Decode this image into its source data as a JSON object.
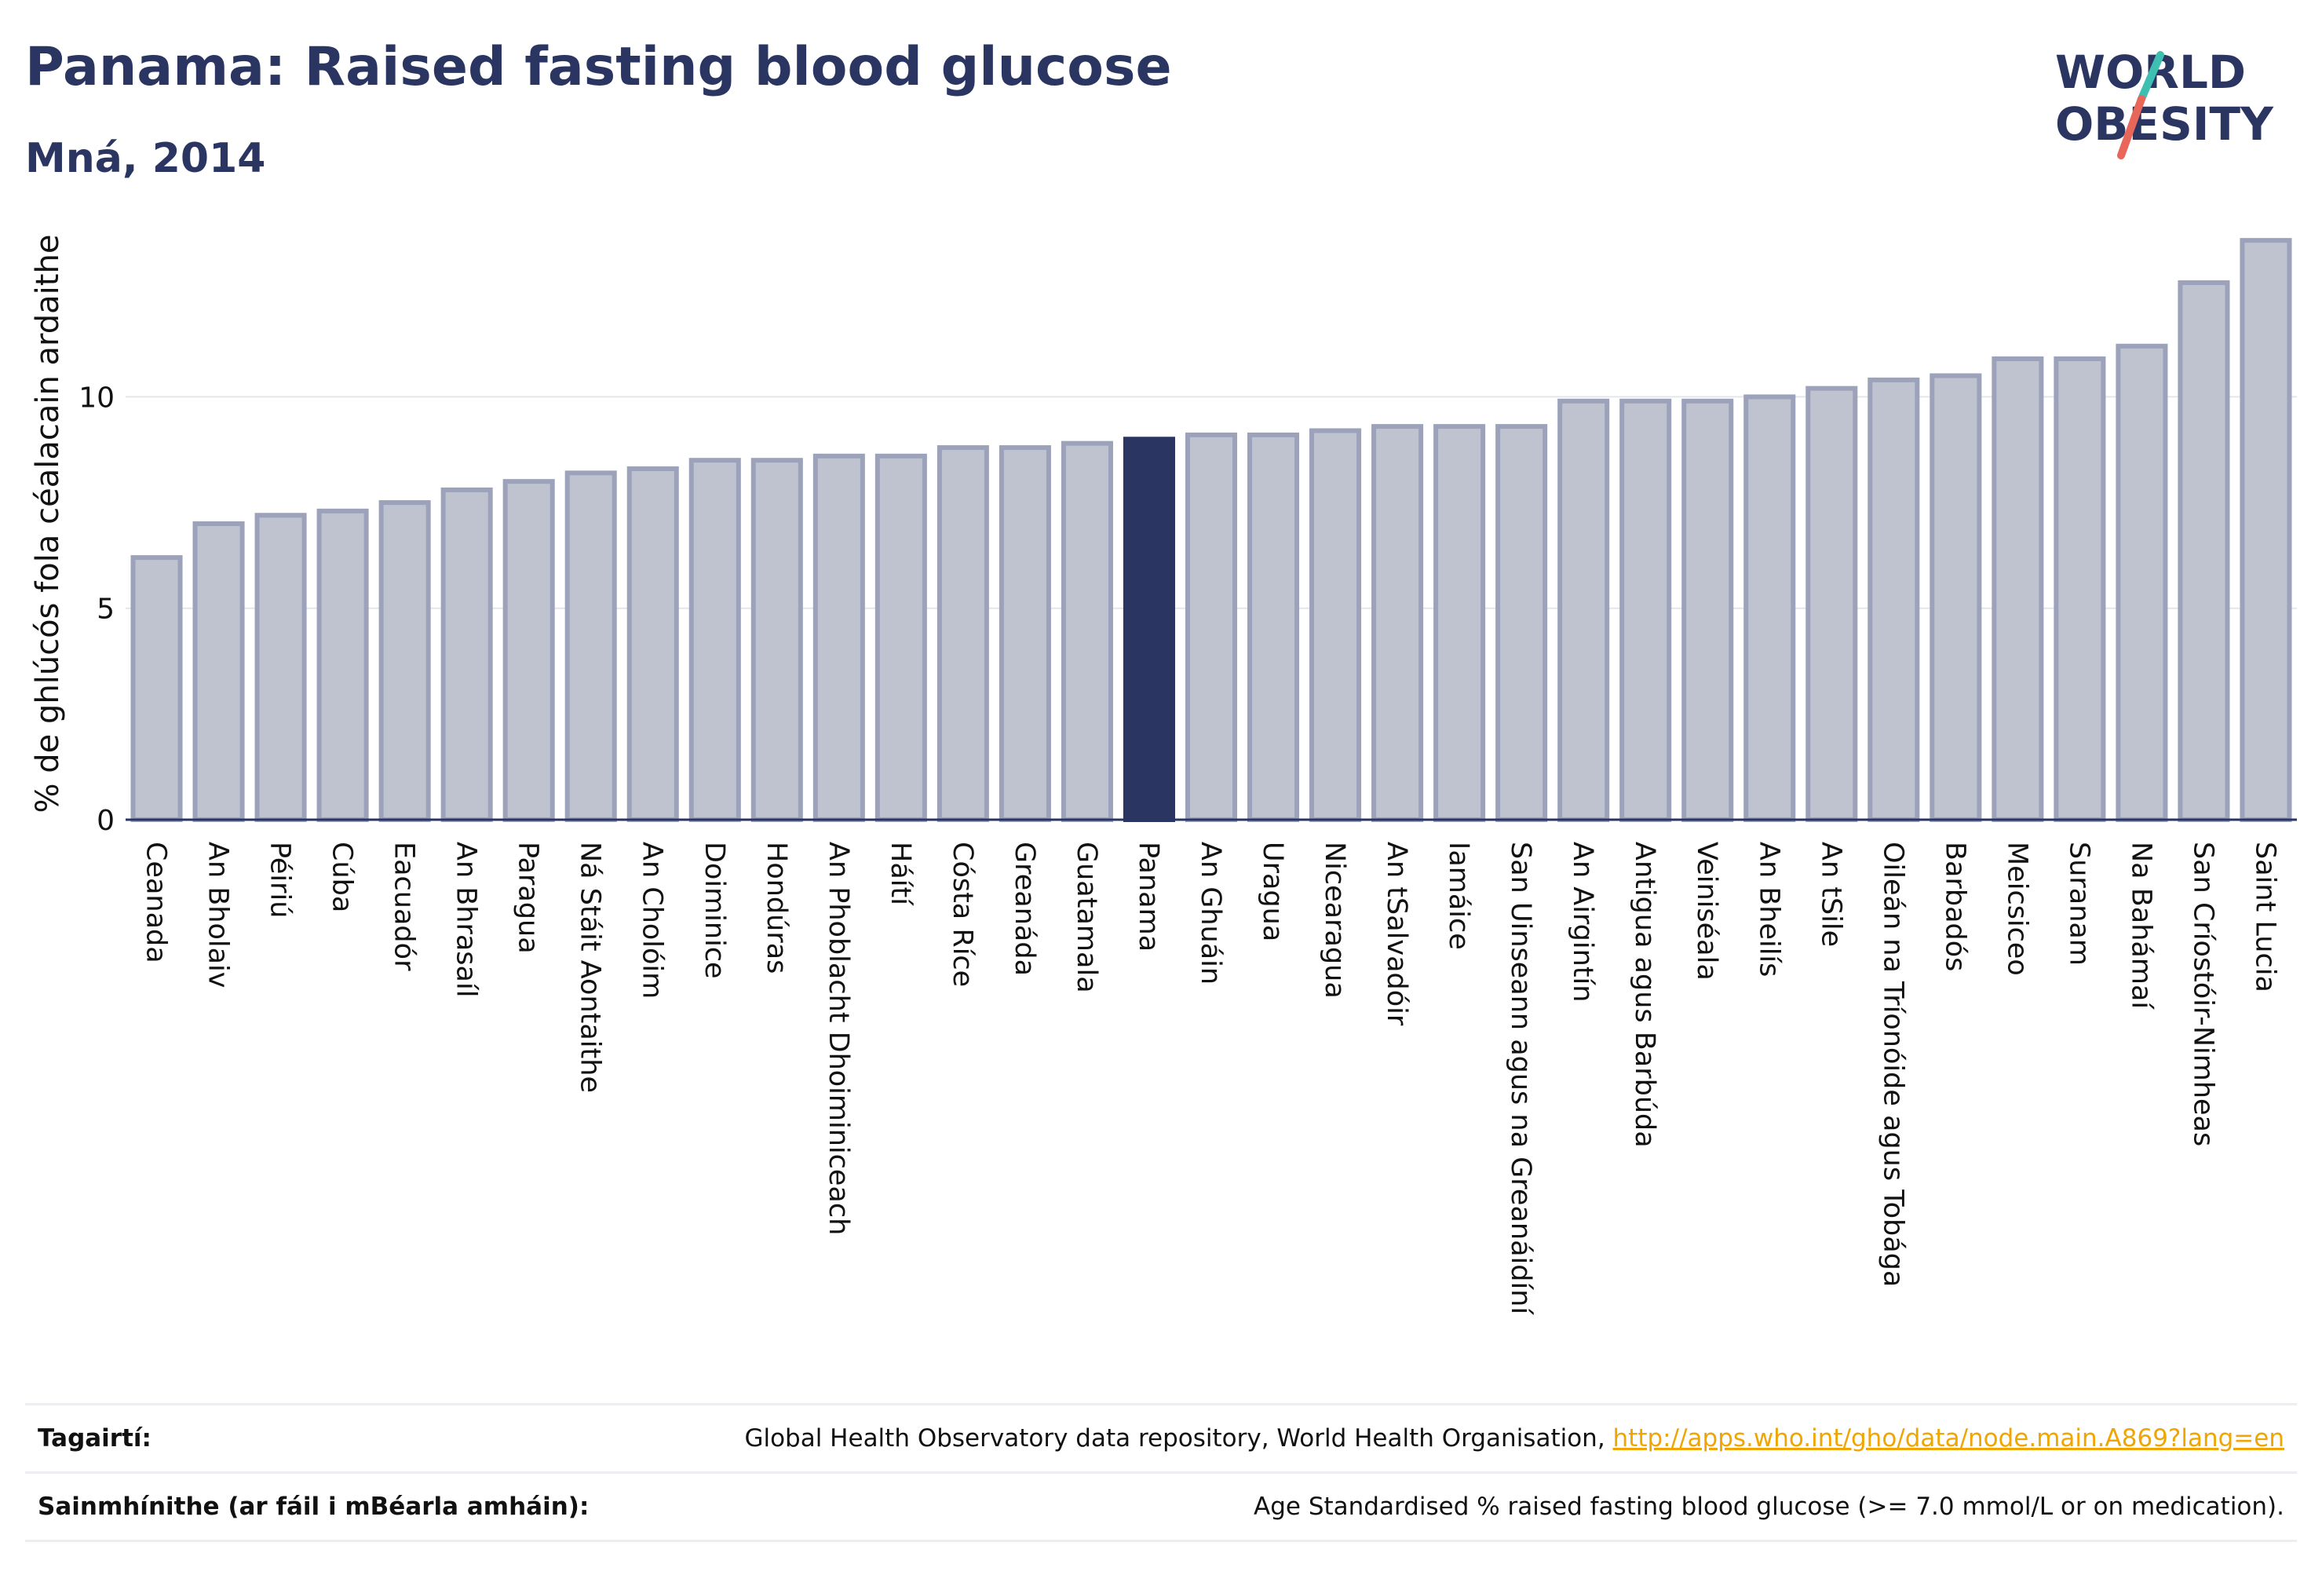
{
  "header": {
    "title": "Panama: Raised fasting blood glucose",
    "subtitle": "Mná, 2014"
  },
  "logo": {
    "line1": "WORLD",
    "line2": "OBESITY",
    "colors": {
      "text": "#2a3561",
      "slash_top": "#3fbfb2",
      "slash_bottom": "#e8665a"
    }
  },
  "chart_data": {
    "type": "bar",
    "ylabel": "% de ghlúcós fola céalacain ardaithe",
    "xlabel": "",
    "ylim": [
      0,
      14
    ],
    "yticks": [
      0,
      5,
      10
    ],
    "grid": true,
    "highlight": "Panama",
    "colors": {
      "bar": "#bfc3d0",
      "bar_border": "#9ca2ba",
      "highlight": "#2a3561",
      "grid": "#e4e6ec",
      "axis": "#2a3561"
    },
    "categories": [
      "Ceanada",
      "An Bholaiv",
      "Péiriú",
      "Cúba",
      "Eacuadór",
      "An Bhrasaíl",
      "Paragua",
      "Ná Stáit Aontaithe",
      "An Cholóim",
      "Doiminice",
      "Hondúras",
      "An Phoblacht Dhoiminiceach",
      "Háítí",
      "Cósta Ríce",
      "Greanáda",
      "Guatamala",
      "Panama",
      "An Ghuáin",
      "Uragua",
      "Nicearagua",
      "An tSalvadóir",
      "Iamáice",
      "San Uinseann agus na Greanáidíní",
      "An Airgintín",
      "Antigua agus Barbúda",
      "Veiniséala",
      "An Bheilís",
      "An tSile",
      "Oileán na Tríonóide agus Tobága",
      "Barbadós",
      "Meicsiceo",
      "Suranam",
      "Na Bahámaí",
      "San Críostóir-Nimheas",
      "Saint Lucia"
    ],
    "values": [
      6.2,
      7.0,
      7.2,
      7.3,
      7.5,
      7.8,
      8.0,
      8.2,
      8.3,
      8.5,
      8.5,
      8.6,
      8.6,
      8.8,
      8.8,
      8.9,
      9.0,
      9.1,
      9.1,
      9.2,
      9.3,
      9.3,
      9.3,
      9.9,
      9.9,
      9.9,
      10.0,
      10.2,
      10.4,
      10.5,
      10.9,
      10.9,
      11.2,
      12.7,
      13.7
    ]
  },
  "references": {
    "sources_label": "Tagairtí:",
    "sources_text": "Global Health Observatory data repository, World Health Organisation, ",
    "sources_link": "http://apps.who.int/gho/data/node.main.A869?lang=en",
    "definitions_label": "Sainmhínithe (ar fáil i mBéarla amháin):",
    "definitions_text": "Age Standardised % raised fasting blood glucose (>= 7.0 mmol/L or on medication)."
  }
}
